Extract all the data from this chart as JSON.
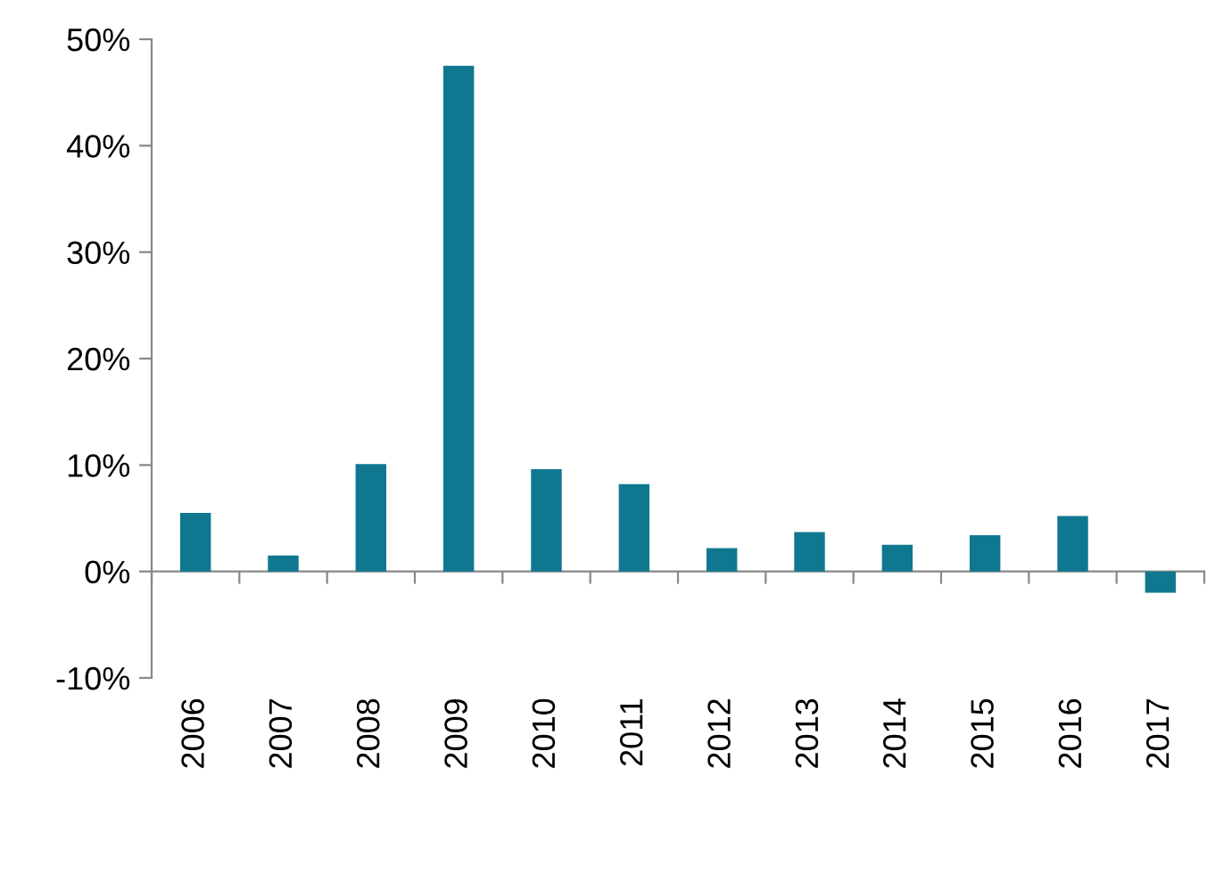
{
  "chart_data": {
    "type": "bar",
    "categories": [
      "2006",
      "2007",
      "2008",
      "2009",
      "2010",
      "2011",
      "2012",
      "2013",
      "2014",
      "2015",
      "2016",
      "2017"
    ],
    "series": [
      {
        "color": "#0f7890",
        "values": [
          5.5,
          1.5,
          10.1,
          47.5,
          9.6,
          8.2,
          2.2,
          3.7,
          2.5,
          3.4,
          5.2,
          -2.0
        ]
      }
    ],
    "ylim": [
      -10,
      50
    ],
    "yticks": [
      {
        "value": -10,
        "label": "-10%"
      },
      {
        "value": 0,
        "label": "0%"
      },
      {
        "value": 10,
        "label": "10%"
      },
      {
        "value": 20,
        "label": "20%"
      },
      {
        "value": 30,
        "label": "30%"
      },
      {
        "value": 40,
        "label": "40%"
      },
      {
        "value": 50,
        "label": "50%"
      }
    ]
  }
}
